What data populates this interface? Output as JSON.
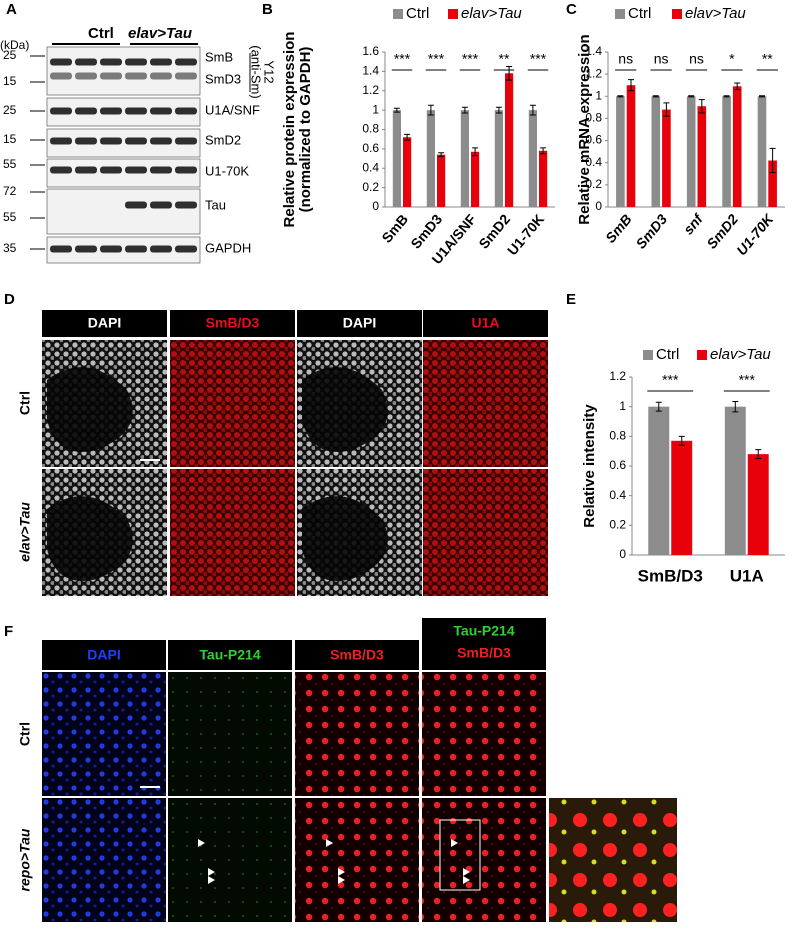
{
  "panel_labels": [
    "A",
    "B",
    "C",
    "D",
    "E",
    "F"
  ],
  "blot": {
    "unit": "(kDa)",
    "groups": [
      "Ctrl",
      "elav>Tau"
    ],
    "antibody": [
      "Y12",
      "(anti-Sm)"
    ],
    "rows": [
      {
        "markers": [
          "25",
          "15"
        ],
        "bands": [
          "SmB",
          "SmD3"
        ]
      },
      {
        "markers": [
          "25"
        ],
        "bands": [
          "U1A/SNF"
        ]
      },
      {
        "markers": [
          "15"
        ],
        "bands": [
          "SmD2"
        ]
      },
      {
        "markers": [
          "55"
        ],
        "bands": [
          "U1-70K"
        ]
      },
      {
        "markers": [
          "72",
          "55"
        ],
        "bands": [
          "Tau"
        ]
      },
      {
        "markers": [
          "35"
        ],
        "bands": [
          "GAPDH"
        ]
      }
    ]
  },
  "chart_data": [
    {
      "type": "bar",
      "y_label": [
        "Relative protein expression",
        "(normalized to GAPDH)"
      ],
      "categories": [
        "SmB",
        "SmD3",
        "U1A/SNF",
        "SmD2",
        "U1-70K"
      ],
      "series": [
        {
          "name": "Ctrl",
          "color": "#8c8c8c",
          "values": [
            1,
            1,
            1,
            1,
            1
          ],
          "errors": [
            0.02,
            0.05,
            0.03,
            0.03,
            0.05
          ]
        },
        {
          "name": "elav>Tau",
          "color": "#e8000b",
          "values": [
            0.72,
            0.54,
            0.57,
            1.38,
            0.58
          ],
          "errors": [
            0.03,
            0.02,
            0.04,
            0.07,
            0.03
          ]
        }
      ],
      "significance": [
        "***",
        "***",
        "***",
        "**",
        "***"
      ],
      "ylim": [
        0,
        1.6
      ],
      "yticks": [
        0,
        0.2,
        0.4,
        0.6,
        0.8,
        1,
        1.2,
        1.4,
        1.6
      ]
    },
    {
      "type": "bar",
      "y_label": [
        "Relative mRNA expression"
      ],
      "categories": [
        "SmB",
        "SmD3",
        "snf",
        "SmD2",
        "U1-70K"
      ],
      "series": [
        {
          "name": "Ctrl",
          "color": "#8c8c8c",
          "values": [
            1,
            1,
            1,
            1,
            1
          ],
          "errors": [
            0.005,
            0.005,
            0.005,
            0.005,
            0.005
          ]
        },
        {
          "name": "elav>Tau",
          "color": "#e8000b",
          "values": [
            1.1,
            0.88,
            0.91,
            1.09,
            0.42
          ],
          "errors": [
            0.05,
            0.06,
            0.06,
            0.03,
            0.11
          ]
        }
      ],
      "significance": [
        "ns",
        "ns",
        "ns",
        "*",
        "**"
      ],
      "ylim": [
        0,
        1.4
      ],
      "yticks": [
        0,
        0.2,
        0.4,
        0.6,
        0.8,
        1,
        1.2,
        1.4
      ]
    },
    {
      "type": "bar",
      "y_label": [
        "Relative intensity"
      ],
      "categories": [
        "SmB/D3",
        "U1A"
      ],
      "series": [
        {
          "name": "Ctrl",
          "color": "#8c8c8c",
          "values": [
            1,
            1
          ],
          "errors": [
            0.03,
            0.035
          ]
        },
        {
          "name": "elav>Tau",
          "color": "#e8000b",
          "values": [
            0.77,
            0.68
          ],
          "errors": [
            0.03,
            0.03
          ]
        }
      ],
      "significance": [
        "***",
        "***"
      ],
      "ylim": [
        0,
        1.2
      ],
      "yticks": [
        0,
        0.2,
        0.4,
        0.6,
        0.8,
        1,
        1.2
      ]
    }
  ],
  "micrograph_d": {
    "columns": [
      "DAPI",
      "SmB/D3",
      "DAPI",
      "U1A"
    ],
    "rows": [
      "Ctrl",
      "elav>Tau"
    ]
  },
  "micrograph_f": {
    "columns": [
      "DAPI",
      "Tau-P214",
      "SmB/D3"
    ],
    "merge_column": [
      "Tau-P214",
      "SmB/D3"
    ],
    "rows": [
      "Ctrl",
      "repo>Tau"
    ]
  }
}
